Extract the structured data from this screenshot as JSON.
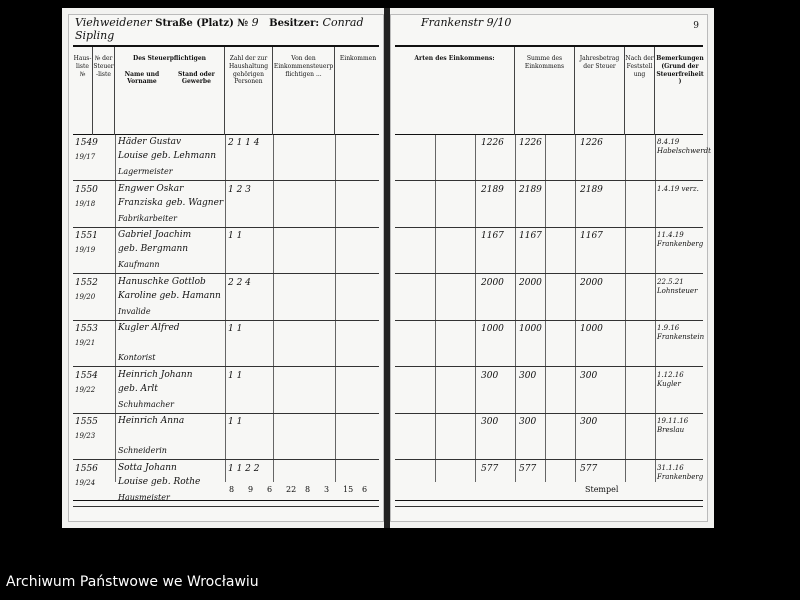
{
  "left_page": {
    "street_handwritten": "Viehweidener",
    "street_label": "Straße (Platz) №",
    "street_number": "9",
    "owner_label": "Besitzer:",
    "owner_handwritten": "Conrad Sipling",
    "headers": [
      "Haus-liste №",
      "№ der Steuer-liste",
      "Des Steuerpflichtigen",
      "Name und Vorname",
      "Stand oder Gewerbe",
      "Zahl der zur Haushaltung gehörigen Personen",
      "Von den Einkommensteuerpflichtigen ...",
      "Einkommen"
    ],
    "summary": [
      "8",
      "9",
      "6",
      "22",
      "8",
      "3",
      "15",
      "6"
    ]
  },
  "right_page": {
    "heading_handwritten": "Frankenstr 9/10",
    "page_number": "9",
    "headers": [
      "Arten des Einkommens:",
      "Summe des Einkommens",
      "Jahresbetrag der Steuer",
      "Nach der Feststellung",
      "Bemerkungen (Grund der Steuerfreiheit)"
    ],
    "footer_text": "Stempel"
  },
  "rows": [
    {
      "num": "1549",
      "ref": "19/17",
      "name": "Häder Gustav",
      "name2": "Louise geb. Lehmann",
      "trade": "Lagermeister",
      "counts": "2 1 1 4",
      "income": "1226",
      "tax": "1226",
      "note": "8.4.19 Habelschwerdt"
    },
    {
      "num": "1550",
      "ref": "19/18",
      "name": "Engwer Oskar",
      "name2": "Franziska geb. Wagner",
      "trade": "Fabrikarbeiter",
      "counts": "1 2 3",
      "income": "2189",
      "tax": "2189",
      "note": "1.4.19 verz."
    },
    {
      "num": "1551",
      "ref": "19/19",
      "name": "Gabriel Joachim",
      "name2": "geb. Bergmann",
      "trade": "Kaufmann",
      "counts": "1 1",
      "income": "1167",
      "tax": "1167",
      "note": "11.4.19 Frankenberg"
    },
    {
      "num": "1552",
      "ref": "19/20",
      "name": "Hanuschke Gottlob",
      "name2": "Karoline geb. Hamann",
      "trade": "Invalide",
      "counts": "2 2 4",
      "income": "2000",
      "tax": "2000",
      "note": "22.5.21 Lohnsteuer"
    },
    {
      "num": "1553",
      "ref": "19/21",
      "name": "Kugler Alfred",
      "name2": "",
      "trade": "Kontorist",
      "counts": "1 1",
      "income": "1000",
      "tax": "1000",
      "note": "1.9.16 Frankenstein"
    },
    {
      "num": "1554",
      "ref": "19/22",
      "name": "Heinrich Johann",
      "name2": "geb. Arlt",
      "trade": "Schuhmacher",
      "counts": "1 1",
      "income": "300",
      "tax": "300",
      "note": "1.12.16 Kugler"
    },
    {
      "num": "1555",
      "ref": "19/23",
      "name": "Heinrich Anna",
      "name2": "",
      "trade": "Schneiderin",
      "counts": "1 1",
      "income": "300",
      "tax": "300",
      "note": "19.11.16 Breslau"
    },
    {
      "num": "1556",
      "ref": "19/24",
      "name": "Sotta Johann",
      "name2": "Louise geb. Rothe",
      "trade": "Hausmeister",
      "counts": "1 1 2 2",
      "income": "577",
      "tax": "577",
      "note": "31.1.16 Frankenberg"
    }
  ],
  "archive_label": "Archiwum Państwowe we Wrocławiu"
}
